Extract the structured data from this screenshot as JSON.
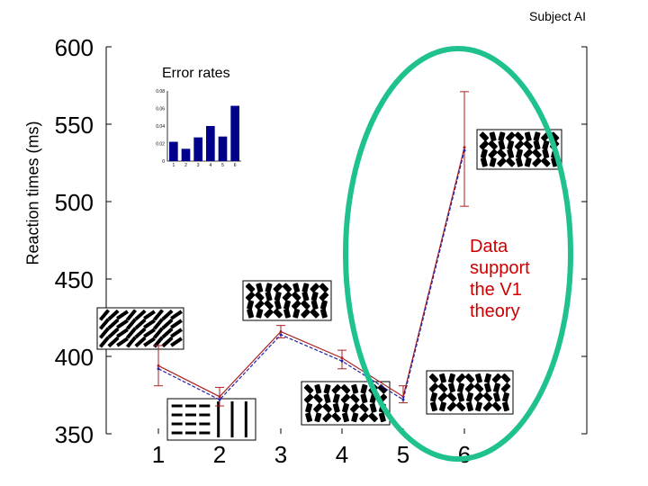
{
  "subject_label": "Subject AI",
  "annotation": [
    "Data",
    "support",
    "the V1",
    "theory"
  ],
  "colors": {
    "highlight": "#1fc28f",
    "annotation": "#cc0000",
    "inset_bars": "#00008b",
    "line_a": "#aa2222",
    "line_b": "#2222aa"
  },
  "chart_data": {
    "type": "line",
    "ylabel": "Reaction times (ms)",
    "xlabel": "",
    "x": [
      1,
      2,
      3,
      4,
      5,
      6
    ],
    "ylim": [
      350,
      600
    ],
    "yticks": [
      350,
      400,
      450,
      500,
      550,
      600
    ],
    "series": [
      {
        "values": [
          394,
          374,
          416,
          399,
          374,
          535
        ]
      },
      {
        "values": [
          392,
          372,
          414,
          397,
          372,
          533
        ]
      }
    ],
    "error_bars": [
      {
        "low": 381,
        "high": 407
      },
      {
        "low": 368,
        "high": 380
      },
      {
        "low": 412,
        "high": 420
      },
      {
        "low": 392,
        "high": 404
      },
      {
        "low": 370,
        "high": 381
      },
      {
        "low": 497,
        "high": 571
      }
    ],
    "inset": {
      "type": "bar",
      "title": "Error rates",
      "categories": [
        "1",
        "2",
        "3",
        "4",
        "5",
        "6"
      ],
      "values": [
        0.022,
        0.014,
        0.027,
        0.04,
        0.028,
        0.063
      ],
      "ylim": [
        0,
        0.08
      ],
      "yticks": [
        "0",
        "0.02",
        "0.04",
        "0.06",
        "0.08"
      ]
    }
  }
}
